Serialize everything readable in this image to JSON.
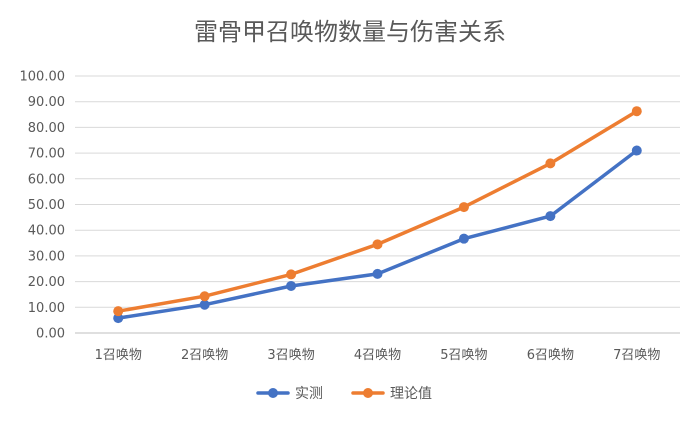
{
  "chart_data": {
    "type": "line",
    "title": "雷骨甲召唤物数量与伤害关系",
    "xlabel": "",
    "ylabel": "",
    "categories": [
      "1召唤物",
      "2召唤物",
      "3召唤物",
      "4召唤物",
      "5召唤物",
      "6召唤物",
      "7召唤物"
    ],
    "ylim": [
      0,
      100
    ],
    "yticks": [
      "0.00",
      "10.00",
      "20.00",
      "30.00",
      "40.00",
      "50.00",
      "60.00",
      "70.00",
      "80.00",
      "90.00",
      "100.00"
    ],
    "grid": true,
    "legend": "bottom",
    "series": [
      {
        "name": "实测",
        "color": "#4472c4",
        "values": [
          5.8,
          11.0,
          18.3,
          23.0,
          36.7,
          45.5,
          71.0
        ]
      },
      {
        "name": "理论值",
        "color": "#ed7d31",
        "values": [
          8.5,
          14.3,
          22.8,
          34.5,
          49.0,
          66.0,
          86.3
        ]
      }
    ]
  }
}
